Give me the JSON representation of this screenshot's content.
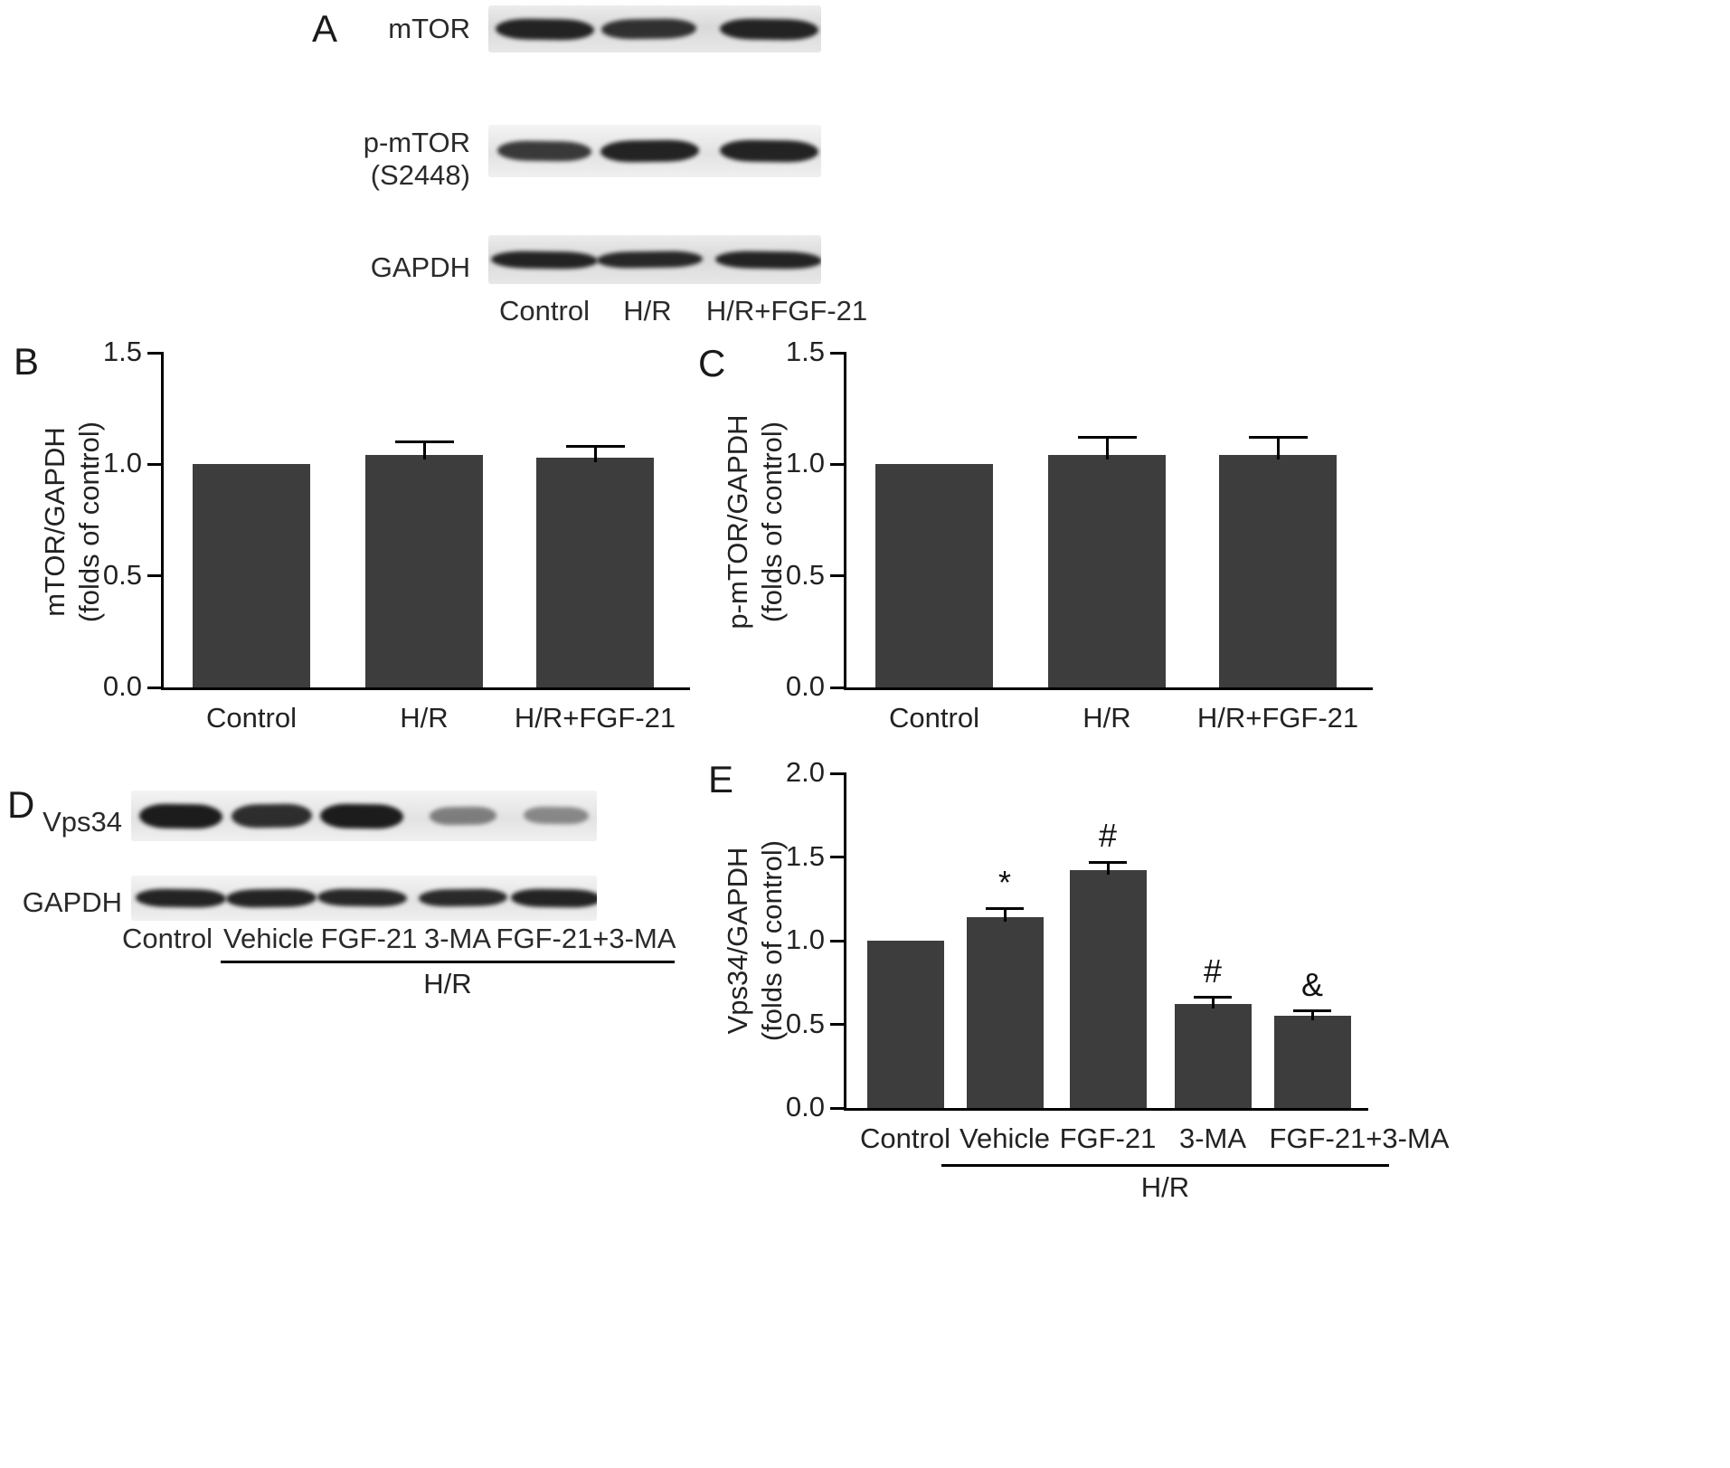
{
  "style": {
    "bar_color": "#3d3d3d",
    "axis_color": "#000000",
    "band_color": "#1c1c1c",
    "text_color": "#222222"
  },
  "panel_a": {
    "letter": "A",
    "row1_label": "mTOR",
    "row2_label": "p-mTOR",
    "row2_label2": "(S2448)",
    "row3_label": "GAPDH",
    "rows": [
      {
        "bands": [
          0.95,
          0.85,
          0.95
        ]
      },
      {
        "bands": [
          0.8,
          0.95,
          0.95
        ]
      },
      {
        "bands": [
          0.95,
          0.92,
          0.95
        ]
      }
    ],
    "lanes": [
      "Control",
      "H/R",
      "H/R+FGF-21"
    ]
  },
  "panel_d": {
    "letter": "D",
    "row1_label": "Vps34",
    "row2_label": "GAPDH",
    "rows": [
      {
        "bands": [
          1.0,
          0.88,
          1.0,
          0.35,
          0.28
        ]
      },
      {
        "bands": [
          0.95,
          0.95,
          0.92,
          0.9,
          0.95
        ]
      }
    ],
    "lanes": [
      "Control",
      "Vehicle",
      "FGF-21",
      "3-MA",
      "FGF-21+3-MA"
    ],
    "group_label": "H/R"
  },
  "chart_data": [
    {
      "id": "B",
      "type": "bar",
      "panel_letter": "B",
      "title": "",
      "xlabel": "",
      "categories": [
        "Control",
        "H/R",
        "H/R+FGF-21"
      ],
      "values": [
        1.0,
        1.04,
        1.03
      ],
      "errors": [
        0,
        0.06,
        0.05
      ],
      "annotations": [
        "",
        "",
        ""
      ],
      "ylabel_line1": "mTOR/GAPDH",
      "ylabel_line2": "(folds of control)",
      "ylim": [
        0,
        1.5
      ],
      "yticks": [
        0.0,
        0.5,
        1.0,
        1.5
      ]
    },
    {
      "id": "C",
      "type": "bar",
      "panel_letter": "C",
      "title": "",
      "xlabel": "",
      "categories": [
        "Control",
        "H/R",
        "H/R+FGF-21"
      ],
      "values": [
        1.0,
        1.04,
        1.04
      ],
      "errors": [
        0,
        0.08,
        0.08
      ],
      "annotations": [
        "",
        "",
        ""
      ],
      "ylabel_line1": "p-mTOR/GAPDH",
      "ylabel_line2": "(folds of control)",
      "ylim": [
        0,
        1.5
      ],
      "yticks": [
        0.0,
        0.5,
        1.0,
        1.5
      ]
    },
    {
      "id": "E",
      "type": "bar",
      "panel_letter": "E",
      "title": "",
      "xlabel": "",
      "categories": [
        "Control",
        "Vehicle",
        "FGF-21",
        "3-MA",
        "FGF-21+3-MA"
      ],
      "values": [
        1.0,
        1.14,
        1.42,
        0.62,
        0.55
      ],
      "errors": [
        0,
        0.05,
        0.05,
        0.04,
        0.03
      ],
      "annotations": [
        "",
        "*",
        "#",
        "#",
        "&"
      ],
      "ylabel_line1": "Vps34/GAPDH",
      "ylabel_line2": "(folds of control)",
      "ylim": [
        0,
        2.0
      ],
      "yticks": [
        0.0,
        0.5,
        1.0,
        1.5,
        2.0
      ],
      "group_label": "H/R",
      "group_span": [
        1,
        4
      ]
    }
  ]
}
